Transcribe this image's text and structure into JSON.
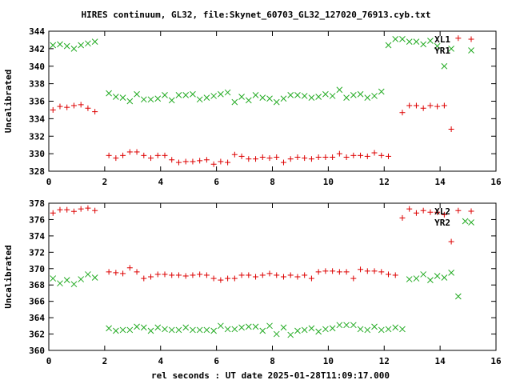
{
  "title": "HIRES continuum, GL32, file:Skynet_60703_GL32_127020_76913.cyb.txt",
  "xlabel": "rel seconds : UT date 2025-01-28T11:09:17.000",
  "colors": {
    "red": "#dd0000",
    "green": "#22aa22"
  },
  "chart_data": [
    {
      "type": "scatter",
      "ylabel": "Uncalibrated",
      "xlim": [
        0,
        16
      ],
      "ylim": [
        328,
        344
      ],
      "xticks": [
        0,
        2,
        4,
        6,
        8,
        10,
        12,
        14,
        16
      ],
      "yticks": [
        328,
        330,
        332,
        334,
        336,
        338,
        340,
        342,
        344
      ],
      "legend_position": "top-right",
      "series": [
        {
          "name": "XL1",
          "marker": "plus",
          "color": "red",
          "x": [
            0.15,
            0.4,
            0.65,
            0.9,
            1.15,
            1.4,
            1.65,
            1.9,
            2.15,
            2.4,
            2.65,
            2.9,
            3.15,
            3.4,
            3.65,
            3.9,
            4.15,
            4.4,
            4.65,
            4.9,
            5.15,
            5.4,
            5.65,
            5.9,
            6.15,
            6.4,
            6.65,
            6.9,
            7.15,
            7.4,
            7.65,
            7.9,
            8.15,
            8.4,
            8.65,
            8.9,
            9.15,
            9.4,
            9.65,
            9.9,
            10.15,
            10.4,
            10.65,
            10.9,
            11.15,
            11.4,
            11.65,
            11.9,
            12.15,
            12.4,
            12.65,
            12.9,
            13.15,
            13.4,
            13.65,
            13.9,
            14.15,
            14.4,
            14.65,
            14.9,
            15.1
          ],
          "y": [
            335.0,
            335.4,
            335.3,
            335.5,
            335.6,
            335.2,
            334.8,
            null,
            329.8,
            329.5,
            329.8,
            330.2,
            330.2,
            329.8,
            329.5,
            329.8,
            329.8,
            329.3,
            329.0,
            329.1,
            329.1,
            329.2,
            329.3,
            328.8,
            329.1,
            329.0,
            329.9,
            329.7,
            329.4,
            329.4,
            329.6,
            329.5,
            329.6,
            329.0,
            329.4,
            329.6,
            329.5,
            329.4,
            329.6,
            329.6,
            329.6,
            330.0,
            329.6,
            329.8,
            329.8,
            329.7,
            330.1,
            329.8,
            329.7,
            null,
            334.7,
            335.5,
            335.5,
            335.2,
            335.5,
            335.4,
            335.5,
            332.8,
            343.2,
            null,
            null
          ]
        },
        {
          "name": "YR1",
          "marker": "cross",
          "color": "green",
          "x": [
            0.15,
            0.4,
            0.65,
            0.9,
            1.15,
            1.4,
            1.65,
            2.15,
            2.4,
            2.65,
            2.9,
            3.15,
            3.4,
            3.65,
            3.9,
            4.15,
            4.4,
            4.65,
            4.9,
            5.15,
            5.4,
            5.65,
            5.9,
            6.15,
            6.4,
            6.65,
            6.9,
            7.15,
            7.4,
            7.65,
            7.9,
            8.15,
            8.4,
            8.65,
            8.9,
            9.15,
            9.4,
            9.65,
            9.9,
            10.15,
            10.4,
            10.65,
            10.9,
            11.15,
            11.4,
            11.65,
            11.9,
            12.15,
            12.4,
            12.65,
            12.9,
            13.15,
            13.4,
            13.65,
            13.9,
            14.15,
            14.4,
            14.65,
            14.9,
            15.1
          ],
          "y": [
            342.4,
            342.5,
            342.3,
            342.0,
            342.4,
            342.6,
            342.8,
            336.9,
            336.5,
            336.4,
            336.0,
            336.8,
            336.2,
            336.2,
            336.3,
            336.7,
            336.1,
            336.7,
            336.7,
            336.8,
            336.2,
            336.4,
            336.6,
            336.8,
            337.0,
            335.9,
            336.5,
            336.1,
            336.7,
            336.4,
            336.3,
            335.9,
            336.3,
            336.7,
            336.7,
            336.6,
            336.4,
            336.5,
            336.8,
            336.6,
            337.3,
            336.4,
            336.7,
            336.8,
            336.4,
            336.6,
            337.1,
            342.4,
            343.1,
            343.1,
            342.8,
            342.8,
            342.5,
            342.9,
            342.3,
            340.0,
            342.0,
            null,
            null,
            null
          ]
        }
      ]
    },
    {
      "type": "scatter",
      "ylabel": "Uncalibrated",
      "xlim": [
        0,
        16
      ],
      "ylim": [
        360,
        378
      ],
      "xticks": [
        0,
        2,
        4,
        6,
        8,
        10,
        12,
        14,
        16
      ],
      "yticks": [
        360,
        362,
        364,
        366,
        368,
        370,
        372,
        374,
        376,
        378
      ],
      "legend_position": "top-right",
      "series": [
        {
          "name": "XL2",
          "marker": "plus",
          "color": "red",
          "x": [
            0.15,
            0.4,
            0.65,
            0.9,
            1.15,
            1.4,
            1.65,
            2.15,
            2.4,
            2.65,
            2.9,
            3.15,
            3.4,
            3.65,
            3.9,
            4.15,
            4.4,
            4.65,
            4.9,
            5.15,
            5.4,
            5.65,
            5.9,
            6.15,
            6.4,
            6.65,
            6.9,
            7.15,
            7.4,
            7.65,
            7.9,
            8.15,
            8.4,
            8.65,
            8.9,
            9.15,
            9.4,
            9.65,
            9.9,
            10.15,
            10.4,
            10.65,
            10.9,
            11.15,
            11.4,
            11.65,
            11.9,
            12.15,
            12.4,
            12.65,
            12.9,
            13.15,
            13.4,
            13.65,
            13.9,
            14.15,
            14.4,
            14.65,
            14.9,
            15.1
          ],
          "y": [
            376.8,
            377.2,
            377.2,
            377.0,
            377.3,
            377.4,
            377.1,
            369.6,
            369.5,
            369.4,
            370.1,
            369.6,
            368.8,
            369.0,
            369.3,
            369.3,
            369.2,
            369.2,
            369.1,
            369.2,
            369.3,
            369.2,
            368.8,
            368.6,
            368.8,
            368.8,
            369.2,
            369.2,
            369.0,
            369.2,
            369.4,
            369.2,
            369.0,
            369.2,
            369.0,
            369.2,
            368.8,
            369.6,
            369.7,
            369.7,
            369.6,
            369.6,
            368.8,
            369.9,
            369.7,
            369.7,
            369.6,
            369.3,
            369.2,
            376.2,
            377.3,
            376.8,
            377.1,
            376.9,
            376.9,
            376.6,
            373.3,
            377.1,
            null,
            null
          ],
          "count_hint": null
        },
        {
          "name": "YR2",
          "marker": "cross",
          "color": "green",
          "x": [
            0.15,
            0.4,
            0.65,
            0.9,
            1.15,
            1.4,
            1.65,
            2.15,
            2.4,
            2.65,
            2.9,
            3.15,
            3.4,
            3.65,
            3.9,
            4.15,
            4.4,
            4.65,
            4.9,
            5.15,
            5.4,
            5.65,
            5.9,
            6.15,
            6.4,
            6.65,
            6.9,
            7.15,
            7.4,
            7.65,
            7.9,
            8.15,
            8.4,
            8.65,
            8.9,
            9.15,
            9.4,
            9.65,
            9.9,
            10.15,
            10.4,
            10.65,
            10.9,
            11.15,
            11.4,
            11.65,
            11.9,
            12.15,
            12.4,
            12.65,
            12.9,
            13.15,
            13.4,
            13.65,
            13.9,
            14.15,
            14.4,
            14.65,
            14.9,
            15.1
          ],
          "y": [
            368.8,
            368.2,
            368.6,
            368.1,
            368.7,
            369.3,
            368.9,
            362.7,
            362.4,
            362.5,
            362.5,
            362.9,
            362.8,
            362.4,
            362.8,
            362.6,
            362.5,
            362.5,
            362.8,
            362.5,
            362.5,
            362.5,
            362.4,
            363.0,
            362.6,
            362.6,
            362.8,
            362.9,
            362.9,
            362.4,
            363.0,
            362.0,
            362.8,
            361.9,
            362.4,
            362.5,
            362.7,
            362.3,
            362.6,
            362.7,
            363.1,
            363.1,
            363.1,
            362.6,
            362.5,
            362.9,
            362.5,
            362.6,
            362.8,
            362.6,
            368.7,
            368.8,
            369.3,
            368.6,
            369.1,
            368.9,
            369.5,
            366.6,
            375.8,
            null
          ]
        }
      ]
    }
  ]
}
